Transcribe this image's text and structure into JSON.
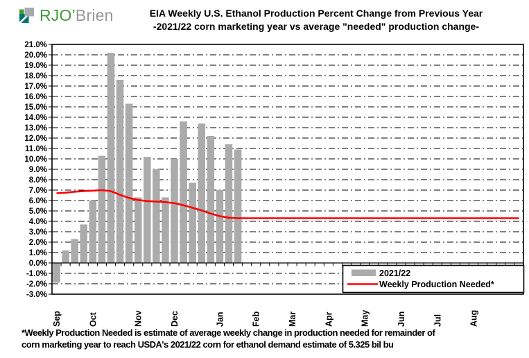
{
  "logo": {
    "green_text": "RJO’",
    "gray_text": "Brien"
  },
  "title": {
    "line1": "EIA Weekly U.S. Ethanol Production Percent Change from Previous Year",
    "line2": "-2021/22 corn marketing year vs average \"needed\" production change-"
  },
  "footnote": {
    "line1": "*Weekly Production Needed is estimate of average weekly change in production needed for remainder of",
    "line2": "corn marketing year to reach USDA's 2021/22  corn for ethanol demand estimate of 5.325  bil bu"
  },
  "colors": {
    "bar": "#ABABAB",
    "line": "#FF0000",
    "grid": "#000000",
    "border": "#000000",
    "logo_green": "#3F9C35",
    "logo_teal": "#00756F",
    "logo_gray_square": "#A7A9AC"
  },
  "chart_data": {
    "type": "bar",
    "title": "EIA Weekly U.S. Ethanol Production Percent Change from Previous Year",
    "subtitle": "-2021/22 corn marketing year vs average \"needed\" production change-",
    "y_axis": {
      "label": "",
      "min": -3.0,
      "max": 21.0,
      "step": 1.0,
      "tick_format": "0.0%",
      "gridline_style": "dash-dot"
    },
    "x_axis": {
      "label": "",
      "months": [
        "Sep",
        "Oct",
        "Nov",
        "Dec",
        "Jan",
        "Feb",
        "Mar",
        "Apr",
        "May",
        "Jun",
        "Jul",
        "Aug"
      ],
      "month_start_weeks": [
        1,
        5,
        10,
        14,
        19,
        23,
        27,
        31,
        35,
        39,
        43,
        47
      ],
      "weeks_total": 52
    },
    "legend_position": "inside-bottom-right",
    "series": [
      {
        "name": "2021/22",
        "type": "bar",
        "color": "#ABABAB",
        "values": [
          -1.9,
          1.2,
          2.3,
          3.7,
          6.0,
          10.3,
          20.2,
          17.6,
          15.3,
          6.3,
          10.2,
          9.0,
          6.3,
          10.0,
          13.6,
          7.7,
          13.4,
          12.2,
          7.0,
          11.4,
          10.9
        ]
      },
      {
        "name": "Weekly Production Needed*",
        "type": "line",
        "color": "#FF0000",
        "values": [
          6.7,
          6.75,
          6.85,
          6.9,
          6.95,
          7.0,
          6.9,
          6.55,
          6.25,
          6.05,
          5.95,
          5.9,
          5.85,
          5.75,
          5.55,
          5.3,
          5.05,
          4.75,
          4.5,
          4.35,
          4.3,
          4.3,
          4.3,
          4.3,
          4.3,
          4.3,
          4.3,
          4.3,
          4.3,
          4.3,
          4.3,
          4.3,
          4.3,
          4.3,
          4.3,
          4.3,
          4.3,
          4.3,
          4.3,
          4.3,
          4.3,
          4.3,
          4.3,
          4.3,
          4.3,
          4.3,
          4.3,
          4.3,
          4.3,
          4.3,
          4.3,
          4.3
        ]
      }
    ]
  }
}
